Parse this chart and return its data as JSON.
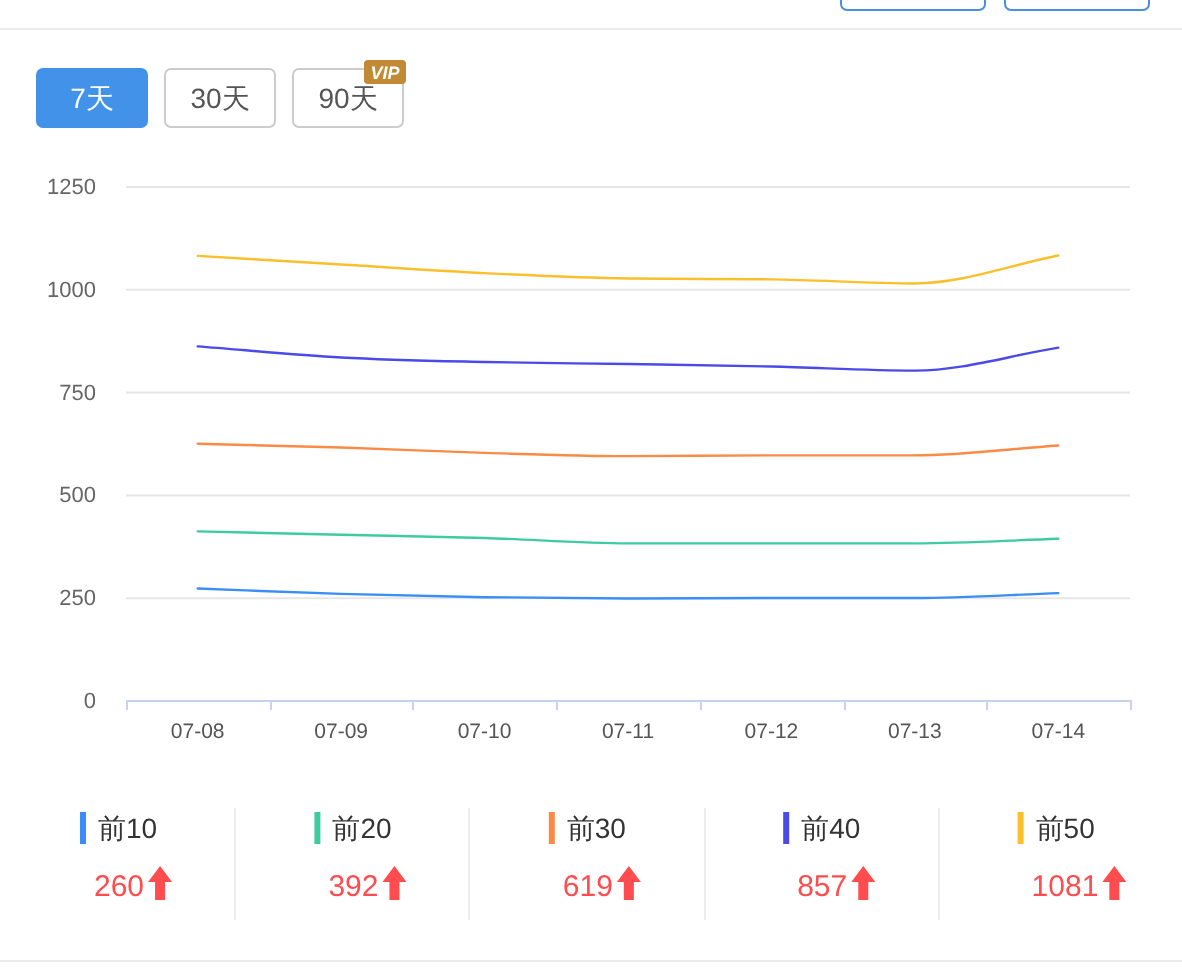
{
  "chart_data": {
    "type": "line",
    "categories": [
      "07-08",
      "07-09",
      "07-10",
      "07-11",
      "07-12",
      "07-13",
      "07-14"
    ],
    "series": [
      {
        "name": "前10",
        "color": "#3a8ef5",
        "values": [
          271,
          258,
          250,
          247,
          248,
          248,
          260
        ]
      },
      {
        "name": "前20",
        "color": "#3ecba0",
        "values": [
          410,
          402,
          394,
          381,
          381,
          381,
          392
        ]
      },
      {
        "name": "前30",
        "color": "#fa8a45",
        "values": [
          623,
          614,
          601,
          593,
          595,
          595,
          619
        ]
      },
      {
        "name": "前40",
        "color": "#4a4ae8",
        "values": [
          860,
          833,
          822,
          817,
          811,
          801,
          857
        ]
      },
      {
        "name": "前50",
        "color": "#fbbf2c",
        "values": [
          1080,
          1059,
          1038,
          1025,
          1023,
          1013,
          1081
        ]
      }
    ],
    "ylim": [
      0,
      1250
    ],
    "yticks": [
      0,
      250,
      500,
      750,
      1000,
      1250
    ],
    "grid": "y",
    "legend": "bottom",
    "annotations": [
      "7天",
      "30天",
      "90天",
      "VIP",
      "260",
      "392",
      "619",
      "857",
      "1081"
    ]
  }
}
